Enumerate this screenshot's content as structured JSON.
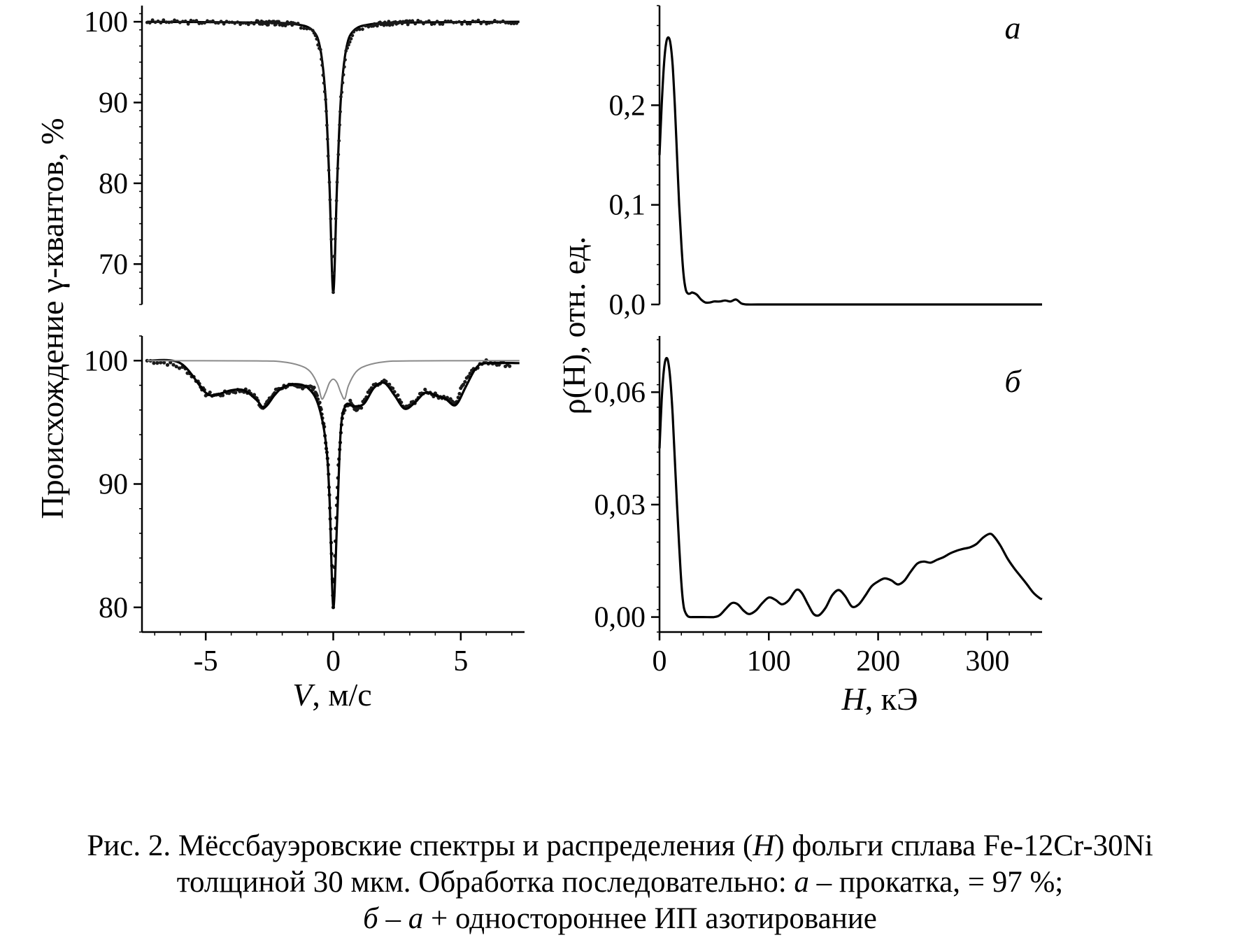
{
  "chart_data": [
    {
      "id": "spectrum-a",
      "type": "line",
      "xlim": [
        -7.5,
        7.5
      ],
      "ylim": [
        65,
        102
      ],
      "yticks": [
        100,
        90,
        80,
        70
      ],
      "xticks": [],
      "series": [
        {
          "kind": "fit",
          "x": [
            -7.3,
            -3,
            -1.5,
            -0.8,
            -0.5,
            -0.3,
            -0.15,
            0,
            0.15,
            0.3,
            0.5,
            0.8,
            1.5,
            3,
            7.3
          ],
          "y": [
            100,
            99.9,
            99.7,
            98.9,
            96.5,
            90.5,
            80,
            66.5,
            80,
            90.5,
            96.5,
            98.9,
            99.7,
            99.9,
            100
          ]
        }
      ]
    },
    {
      "id": "spectrum-b",
      "type": "line",
      "xlim": [
        -7.5,
        7.5
      ],
      "ylim": [
        78,
        102
      ],
      "yticks": [
        100,
        90,
        80
      ],
      "xticks": [
        -5,
        0,
        5
      ],
      "series": [
        {
          "kind": "data",
          "x": [
            -7.3,
            -6.5,
            -5.8,
            -5.3,
            -5,
            -4.5,
            -4,
            -3.5,
            -3.1,
            -2.8,
            -2.5,
            -2.2,
            -1.8,
            -1.4,
            -1,
            -0.7,
            -0.5,
            -0.35,
            -0.2,
            -0.1,
            0,
            0.1,
            0.2,
            0.35,
            0.5,
            0.7,
            0.9,
            1.1,
            1.5,
            2,
            2.4,
            2.8,
            3.2,
            3.6,
            4,
            4.4,
            4.8,
            5.1,
            5.5,
            6,
            6.5,
            7
          ],
          "y": [
            100,
            99.8,
            99.3,
            98.3,
            97.3,
            97.2,
            97.5,
            97.6,
            97.2,
            96.2,
            96.8,
            97.7,
            98,
            97.8,
            98,
            97.6,
            96.2,
            94.5,
            91.5,
            86.5,
            80,
            86.5,
            91.5,
            95.5,
            96.3,
            96.7,
            96,
            96.3,
            97.8,
            98.3,
            97.5,
            96.1,
            96.7,
            97.6,
            97.2,
            97,
            96.5,
            98.2,
            99.4,
            99.9,
            99.8,
            99.6
          ]
        },
        {
          "kind": "fit",
          "x": [
            -7.3,
            -6,
            -5,
            -4.5,
            -4,
            -3.5,
            -3,
            -2.7,
            -2.3,
            -2,
            -1.5,
            -1,
            -0.6,
            -0.3,
            -0.15,
            0,
            0.15,
            0.3,
            0.5,
            0.8,
            1.2,
            1.6,
            2,
            2.4,
            2.8,
            3.2,
            3.6,
            4,
            4.4,
            4.8,
            5.2,
            5.6,
            6,
            7.3
          ],
          "y": [
            100,
            99.8,
            97.4,
            97.3,
            97.6,
            97.6,
            96.8,
            96.2,
            97.2,
            97.8,
            98.1,
            97.8,
            96.5,
            93.5,
            89,
            80,
            87,
            94.5,
            96.4,
            96.3,
            96.5,
            97.8,
            98.2,
            97.2,
            96.1,
            96.6,
            97.4,
            97.2,
            96.9,
            96.4,
            97.9,
            99.4,
            99.8,
            99.8
          ]
        },
        {
          "kind": "subspectrum",
          "x": [
            -7.3,
            -3,
            -2,
            -1.3,
            -0.9,
            -0.6,
            -0.45,
            -0.3,
            -0.15,
            0,
            0.15,
            0.3,
            0.45,
            0.6,
            0.9,
            1.3,
            2,
            3,
            7.3
          ],
          "y": [
            100,
            99.98,
            99.9,
            99.6,
            99.1,
            98,
            96.9,
            97.4,
            98.2,
            98.5,
            98.2,
            97.4,
            96.9,
            98,
            99.1,
            99.6,
            99.9,
            99.98,
            100
          ]
        }
      ],
      "xlabel": "V, м/с",
      "ylabel": "Происхождение γ-квантов, %"
    },
    {
      "id": "distribution-a",
      "type": "line",
      "xlim": [
        0,
        350
      ],
      "ylim": [
        0,
        0.3
      ],
      "yticks": [
        0.0,
        0.1,
        0.2
      ],
      "ytick_labels": [
        "0,0",
        "0,1",
        "0,2"
      ],
      "xticks": [],
      "series": [
        {
          "x": [
            0,
            2,
            4,
            6,
            8,
            10,
            12,
            14,
            16,
            18,
            20,
            22,
            24,
            26,
            28,
            30,
            34,
            38,
            42,
            46,
            50,
            55,
            60,
            65,
            70,
            75,
            80,
            90,
            120,
            200,
            300,
            350
          ],
          "y": [
            0.15,
            0.2,
            0.24,
            0.262,
            0.268,
            0.262,
            0.24,
            0.2,
            0.15,
            0.1,
            0.06,
            0.03,
            0.015,
            0.011,
            0.011,
            0.012,
            0.01,
            0.005,
            0.002,
            0.002,
            0.003,
            0.003,
            0.004,
            0.003,
            0.005,
            0.001,
            0,
            0,
            0,
            0,
            0,
            0
          ]
        }
      ]
    },
    {
      "id": "distribution-b",
      "type": "line",
      "xlim": [
        0,
        350
      ],
      "ylim": [
        -0.004,
        0.075
      ],
      "yticks": [
        0.0,
        0.03,
        0.06
      ],
      "ytick_labels": [
        "0,00",
        "0,03",
        "0,06"
      ],
      "xticks": [
        0,
        100,
        200,
        300
      ],
      "series": [
        {
          "x": [
            0,
            2,
            4,
            6,
            8,
            10,
            12,
            14,
            16,
            18,
            20,
            22,
            24,
            26,
            28,
            30,
            40,
            50,
            55,
            60,
            65,
            68,
            72,
            77,
            82,
            88,
            94,
            100,
            106,
            112,
            118,
            125,
            130,
            136,
            141,
            146,
            152,
            158,
            164,
            170,
            176,
            182,
            188,
            194,
            200,
            206,
            212,
            218,
            224,
            230,
            236,
            242,
            248,
            254,
            260,
            266,
            272,
            278,
            284,
            290,
            296,
            302,
            306,
            312,
            318,
            324,
            330,
            336,
            342,
            348,
            350
          ],
          "y": [
            0.045,
            0.058,
            0.066,
            0.069,
            0.068,
            0.063,
            0.054,
            0.042,
            0.03,
            0.019,
            0.009,
            0.003,
            0.001,
            0.0002,
            0,
            0,
            0,
            0,
            0.0005,
            0.002,
            0.0035,
            0.0038,
            0.0033,
            0.0017,
            0.0008,
            0.0017,
            0.0037,
            0.0052,
            0.0046,
            0.0034,
            0.0044,
            0.0072,
            0.0065,
            0.0033,
            0.0008,
            0.0005,
            0.0025,
            0.0058,
            0.0072,
            0.0055,
            0.0028,
            0.0033,
            0.0056,
            0.0082,
            0.0095,
            0.0103,
            0.0098,
            0.0087,
            0.0097,
            0.0122,
            0.0143,
            0.0148,
            0.0145,
            0.0153,
            0.016,
            0.017,
            0.0177,
            0.0182,
            0.0186,
            0.0195,
            0.0212,
            0.0222,
            0.0215,
            0.019,
            0.0158,
            0.0132,
            0.011,
            0.0088,
            0.0065,
            0.005,
            0.0048
          ]
        }
      ],
      "xlabel": "H, кЭ",
      "ylabel": "ρ(H), отн. ед."
    }
  ],
  "labels": {
    "panel_a": "а",
    "panel_b": "б",
    "y_left_title": "Происхождение γ-квантов, %",
    "x_left_var": "V",
    "x_left_unit": ", м/с",
    "y_right_title": "ρ(H), отн. ед.",
    "x_right_var": "H",
    "x_right_unit": ", кЭ"
  },
  "caption": {
    "line1_a": "Рис. 2. Мёссбауэровские спектры и распределения (",
    "line1_var": "H",
    "line1_b": ") фольги сплава Fe-12Cr-30Ni",
    "line2_a": "толщиной 30 мкм. Обработка последовательно: ",
    "line2_var": "а",
    "line2_b": " – прокатка,  = 97 %;",
    "line3_var1": "б",
    "line3_mid": " – ",
    "line3_var2": "а",
    "line3_b": " + одностороннее ИП азотирование"
  },
  "colors": {
    "line": "#000000",
    "subspectrum": "#8a8a8a",
    "data_points": "#1a1a1a"
  }
}
